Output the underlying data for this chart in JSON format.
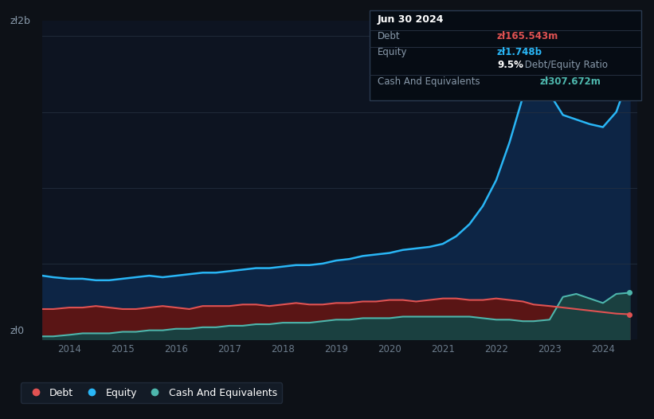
{
  "bg_color": "#0d1117",
  "plot_bg_color": "#0d1421",
  "grid_color": "#253040",
  "ylabel_top": "zł2b",
  "ylabel_bottom": "zł0",
  "x_ticks": [
    "2014",
    "2015",
    "2016",
    "2017",
    "2018",
    "2019",
    "2020",
    "2021",
    "2022",
    "2023",
    "2024"
  ],
  "debt_color": "#e05252",
  "equity_color": "#29b6f6",
  "cash_color": "#4db6ac",
  "debt_fill_color": "#5a1515",
  "equity_fill_color": "#0d2545",
  "cash_fill_color": "#1a4040",
  "legend_bg": "#151e2b",
  "legend_border": "#253040",
  "years": [
    2013.5,
    2013.7,
    2014.0,
    2014.25,
    2014.5,
    2014.75,
    2015.0,
    2015.25,
    2015.5,
    2015.75,
    2016.0,
    2016.25,
    2016.5,
    2016.75,
    2017.0,
    2017.25,
    2017.5,
    2017.75,
    2018.0,
    2018.25,
    2018.5,
    2018.75,
    2019.0,
    2019.25,
    2019.5,
    2019.75,
    2020.0,
    2020.25,
    2020.5,
    2020.75,
    2021.0,
    2021.25,
    2021.5,
    2021.75,
    2022.0,
    2022.25,
    2022.5,
    2022.6,
    2022.7,
    2023.0,
    2023.25,
    2023.5,
    2023.75,
    2024.0,
    2024.25,
    2024.5
  ],
  "equity": [
    0.42,
    0.41,
    0.4,
    0.4,
    0.39,
    0.39,
    0.4,
    0.41,
    0.42,
    0.41,
    0.42,
    0.43,
    0.44,
    0.44,
    0.45,
    0.46,
    0.47,
    0.47,
    0.48,
    0.49,
    0.49,
    0.5,
    0.52,
    0.53,
    0.55,
    0.56,
    0.57,
    0.59,
    0.6,
    0.61,
    0.63,
    0.68,
    0.76,
    0.88,
    1.05,
    1.3,
    1.6,
    1.82,
    1.88,
    1.62,
    1.48,
    1.45,
    1.42,
    1.4,
    1.5,
    1.748
  ],
  "debt": [
    0.2,
    0.2,
    0.21,
    0.21,
    0.22,
    0.21,
    0.2,
    0.2,
    0.21,
    0.22,
    0.21,
    0.2,
    0.22,
    0.22,
    0.22,
    0.23,
    0.23,
    0.22,
    0.23,
    0.24,
    0.23,
    0.23,
    0.24,
    0.24,
    0.25,
    0.25,
    0.26,
    0.26,
    0.25,
    0.26,
    0.27,
    0.27,
    0.26,
    0.26,
    0.27,
    0.26,
    0.25,
    0.24,
    0.23,
    0.22,
    0.21,
    0.2,
    0.19,
    0.18,
    0.17,
    0.1655
  ],
  "cash": [
    0.02,
    0.02,
    0.03,
    0.04,
    0.04,
    0.04,
    0.05,
    0.05,
    0.06,
    0.06,
    0.07,
    0.07,
    0.08,
    0.08,
    0.09,
    0.09,
    0.1,
    0.1,
    0.11,
    0.11,
    0.11,
    0.12,
    0.13,
    0.13,
    0.14,
    0.14,
    0.14,
    0.15,
    0.15,
    0.15,
    0.15,
    0.15,
    0.15,
    0.14,
    0.13,
    0.13,
    0.12,
    0.12,
    0.12,
    0.13,
    0.28,
    0.3,
    0.27,
    0.24,
    0.3,
    0.3077
  ],
  "tooltip": {
    "date": "Jun 30 2024",
    "debt_label": "Debt",
    "debt_value": "zł165.543m",
    "equity_label": "Equity",
    "equity_value": "zł1.748b",
    "ratio_pct": "9.5%",
    "ratio_text": " Debt/Equity Ratio",
    "cash_label": "Cash And Equivalents",
    "cash_value": "zł307.672m"
  }
}
